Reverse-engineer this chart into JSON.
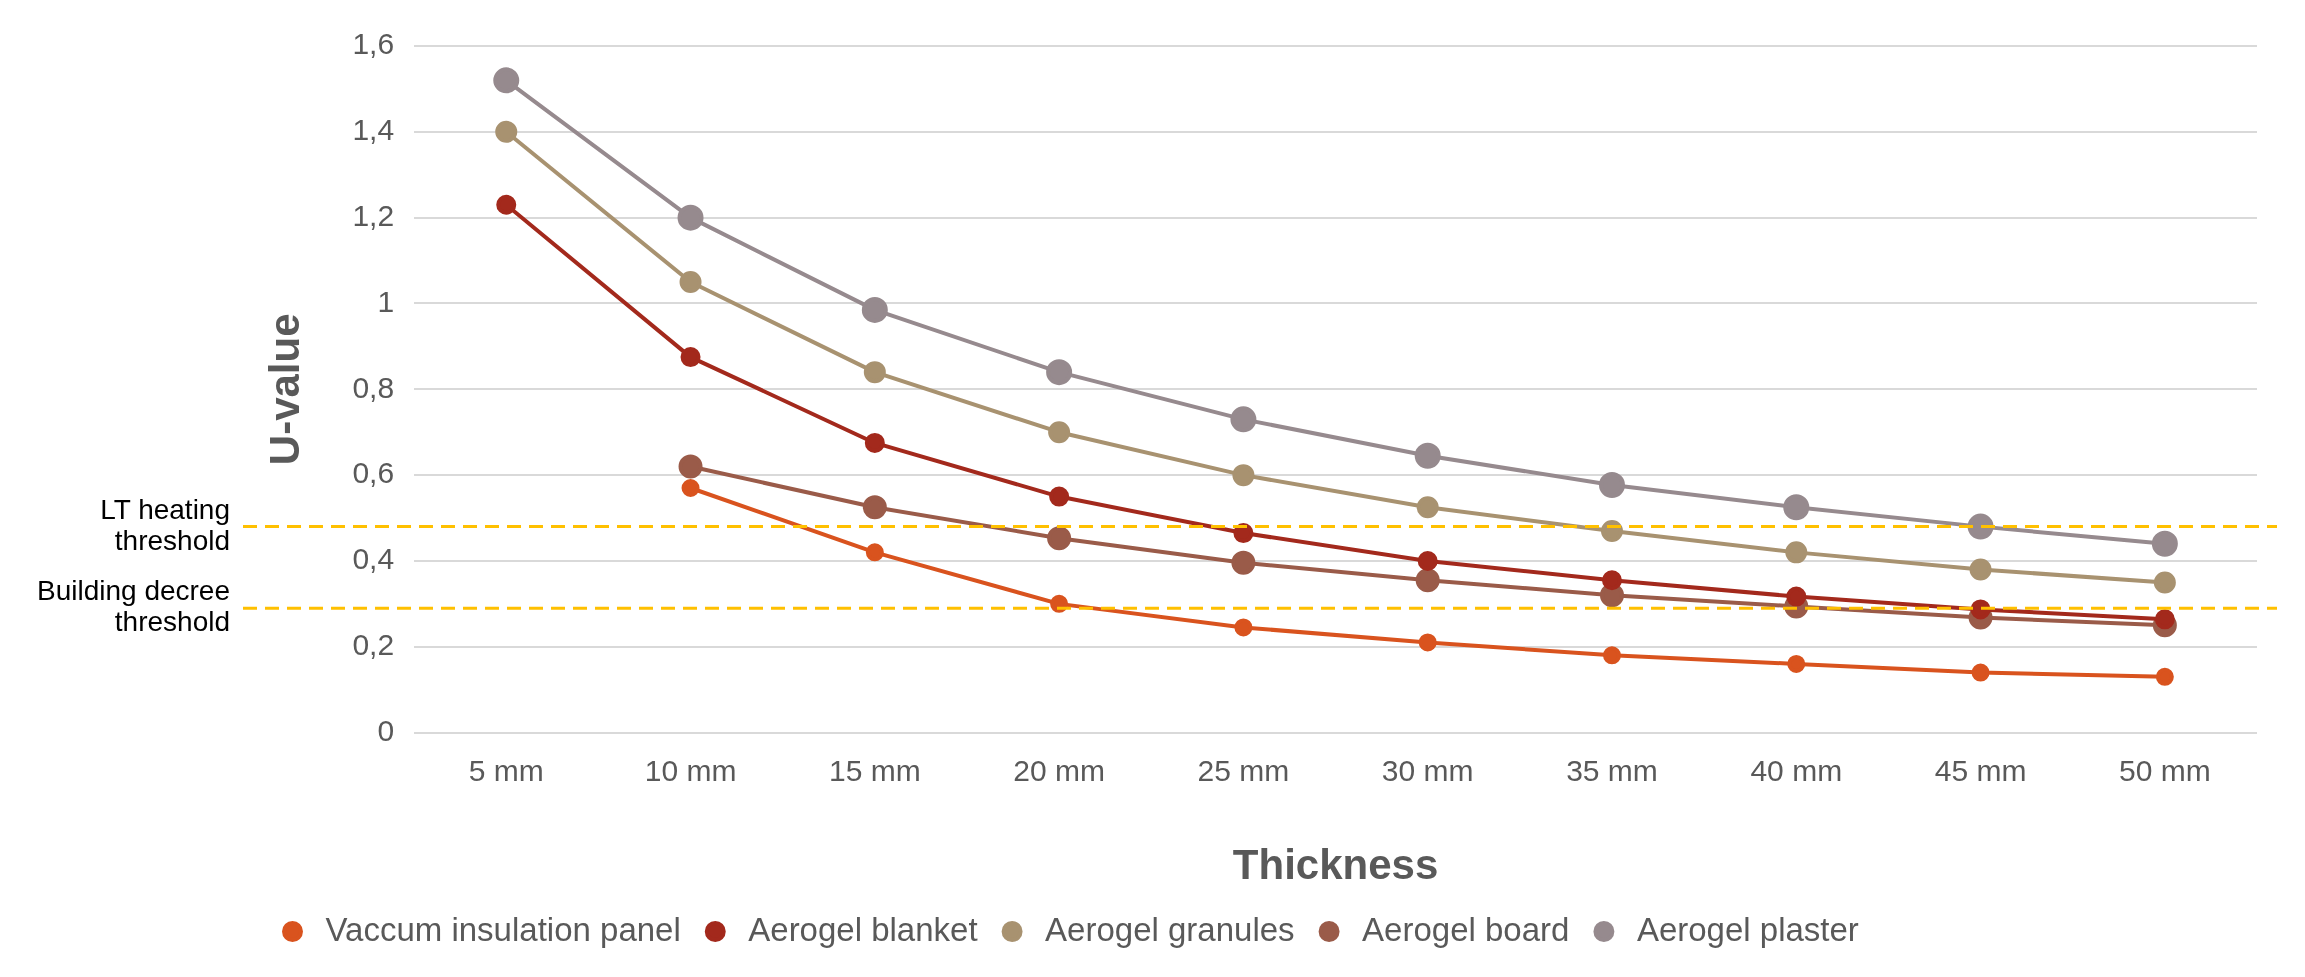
{
  "chart_data": {
    "type": "line",
    "xlabel": "Thickness",
    "ylabel": "U-value",
    "categories": [
      "5 mm",
      "10 mm",
      "15 mm",
      "20 mm",
      "25 mm",
      "30 mm",
      "35 mm",
      "40 mm",
      "45 mm",
      "50 mm"
    ],
    "series": [
      {
        "name": "Vaccum insulation panel",
        "color": "#d9531e",
        "values": [
          null,
          0.57,
          0.42,
          0.3,
          0.245,
          0.21,
          0.18,
          0.16,
          0.14,
          0.13
        ]
      },
      {
        "name": "Aerogel blanket",
        "color": "#a3291c",
        "values": [
          1.23,
          0.875,
          0.675,
          0.55,
          0.465,
          0.4,
          0.355,
          0.317,
          0.287,
          0.264
        ]
      },
      {
        "name": "Aerogel granules",
        "color": "#a89270",
        "values": [
          1.4,
          1.05,
          0.84,
          0.7,
          0.6,
          0.525,
          0.47,
          0.42,
          0.38,
          0.35
        ]
      },
      {
        "name": "Aerogel board",
        "color": "#9a5b49",
        "values": [
          null,
          0.62,
          0.525,
          0.453,
          0.396,
          0.355,
          0.32,
          0.294,
          0.268,
          0.25
        ]
      },
      {
        "name": "Aerogel plaster",
        "color": "#968a8e",
        "values": [
          1.52,
          1.2,
          0.985,
          0.84,
          0.73,
          0.645,
          0.577,
          0.525,
          0.48,
          0.44
        ]
      }
    ],
    "ylim": [
      0,
      1.6
    ],
    "yticks": [
      0,
      {
        "value": 0.2,
        "label": "0,2"
      },
      {
        "value": 0.4,
        "label": "0,4"
      },
      {
        "value": 0.6,
        "label": "0,6"
      },
      {
        "value": 0.8,
        "label": "0,8"
      },
      1,
      {
        "value": 1.2,
        "label": "1,2"
      },
      {
        "value": 1.4,
        "label": "1,4"
      },
      {
        "value": 1.6,
        "label": "1,6"
      }
    ],
    "ref_lines": [
      {
        "axis": "y",
        "value": 0.48,
        "label": "LT heating threshold",
        "color": "#ffc000",
        "line_style": "dashed"
      },
      {
        "axis": "y",
        "value": 0.29,
        "label": "Building decree threshold",
        "color": "#ffc000",
        "line_style": "dashed"
      }
    ],
    "grid": "y",
    "legend": "bottom",
    "marker": "circle",
    "line_style": "solid"
  }
}
